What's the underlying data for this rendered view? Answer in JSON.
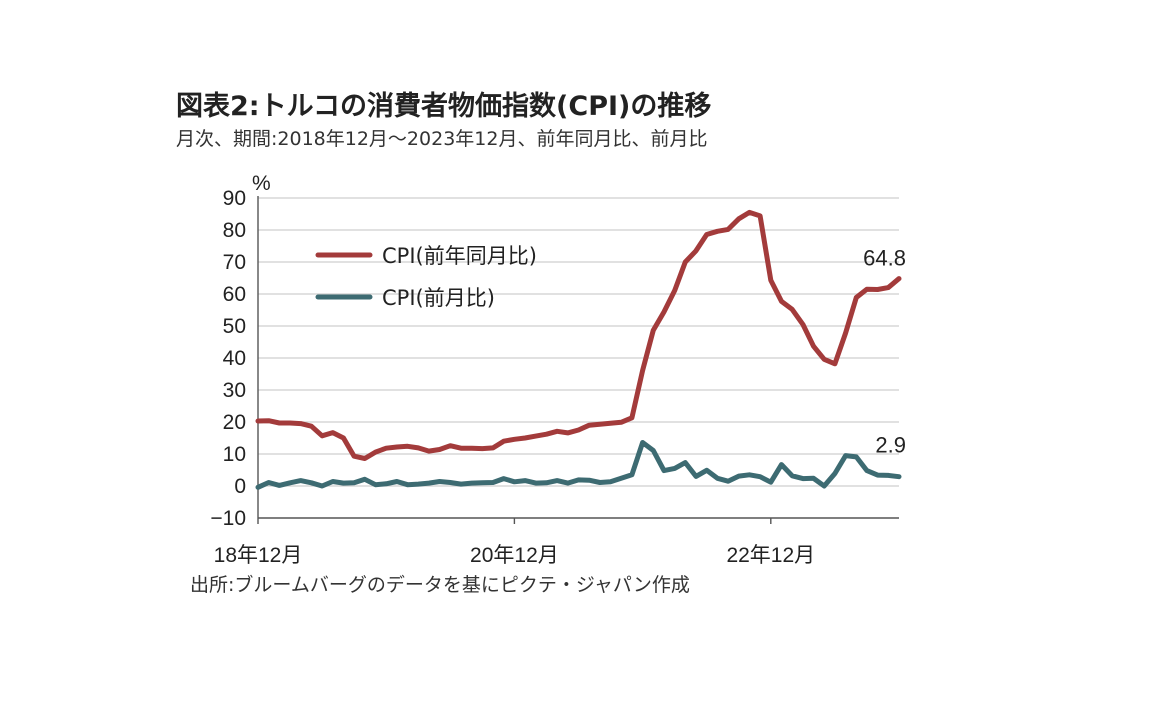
{
  "title": "図表2:トルコの消費者物価指数(CPI)の推移",
  "subtitle": "月次、期間:2018年12月〜2023年12月、前年同月比、前月比",
  "source": "出所:ブルームバーグのデータを基にピクテ・ジャパン作成",
  "chart_data": {
    "type": "line",
    "ylabel": "%",
    "ylim": [
      -10,
      90
    ],
    "yticks": [
      90,
      80,
      70,
      60,
      50,
      40,
      30,
      20,
      10,
      0,
      -10
    ],
    "ytick_labels": [
      "90",
      "80",
      "70",
      "60",
      "50",
      "40",
      "30",
      "20",
      "10",
      "0",
      "−10"
    ],
    "x_start": "2018-12",
    "x_end": "2023-12",
    "xtick_labels": [
      {
        "label": "18年12月",
        "date": "2018-12"
      },
      {
        "label": "20年12月",
        "date": "2020-12"
      },
      {
        "label": "22年12月",
        "date": "2022-12"
      }
    ],
    "x": [
      "2018-12",
      "2019-01",
      "2019-02",
      "2019-03",
      "2019-04",
      "2019-05",
      "2019-06",
      "2019-07",
      "2019-08",
      "2019-09",
      "2019-10",
      "2019-11",
      "2019-12",
      "2020-01",
      "2020-02",
      "2020-03",
      "2020-04",
      "2020-05",
      "2020-06",
      "2020-07",
      "2020-08",
      "2020-09",
      "2020-10",
      "2020-11",
      "2020-12",
      "2021-01",
      "2021-02",
      "2021-03",
      "2021-04",
      "2021-05",
      "2021-06",
      "2021-07",
      "2021-08",
      "2021-09",
      "2021-10",
      "2021-11",
      "2021-12",
      "2022-01",
      "2022-02",
      "2022-03",
      "2022-04",
      "2022-05",
      "2022-06",
      "2022-07",
      "2022-08",
      "2022-09",
      "2022-10",
      "2022-11",
      "2022-12",
      "2023-01",
      "2023-02",
      "2023-03",
      "2023-04",
      "2023-05",
      "2023-06",
      "2023-07",
      "2023-08",
      "2023-09",
      "2023-10",
      "2023-11",
      "2023-12"
    ],
    "series": [
      {
        "name": "CPI(前年同月比)",
        "color": "#a33b3b",
        "values": [
          20.3,
          20.4,
          19.7,
          19.7,
          19.5,
          18.7,
          15.7,
          16.7,
          15.0,
          9.3,
          8.6,
          10.6,
          11.8,
          12.2,
          12.4,
          11.9,
          10.9,
          11.4,
          12.6,
          11.8,
          11.8,
          11.7,
          11.9,
          14.0,
          14.6,
          15.0,
          15.6,
          16.2,
          17.1,
          16.6,
          17.5,
          19.0,
          19.3,
          19.6,
          19.9,
          21.3,
          36.1,
          48.7,
          54.4,
          61.1,
          70.0,
          73.5,
          78.6,
          79.6,
          80.2,
          83.5,
          85.5,
          84.4,
          64.3,
          57.7,
          55.2,
          50.5,
          43.7,
          39.6,
          38.2,
          47.8,
          58.9,
          61.5,
          61.4,
          62.0,
          64.8
        ]
      },
      {
        "name": "CPI(前月比)",
        "color": "#3d6b72",
        "values": [
          -0.4,
          1.1,
          0.2,
          1.0,
          1.7,
          1.0,
          0.0,
          1.4,
          0.9,
          1.0,
          2.1,
          0.4,
          0.7,
          1.4,
          0.4,
          0.6,
          0.9,
          1.4,
          1.1,
          0.6,
          0.9,
          1.0,
          1.1,
          2.3,
          1.3,
          1.7,
          0.9,
          1.0,
          1.7,
          0.9,
          1.9,
          1.8,
          1.1,
          1.3,
          2.4,
          3.5,
          13.6,
          11.1,
          4.8,
          5.5,
          7.3,
          3.0,
          4.9,
          2.4,
          1.5,
          3.1,
          3.5,
          2.9,
          1.2,
          6.7,
          3.2,
          2.3,
          2.4,
          0.0,
          3.9,
          9.5,
          9.1,
          4.8,
          3.4,
          3.3,
          2.9
        ]
      }
    ],
    "end_labels": [
      "64.8",
      "2.9"
    ],
    "legend": "top-left",
    "grid": true
  }
}
